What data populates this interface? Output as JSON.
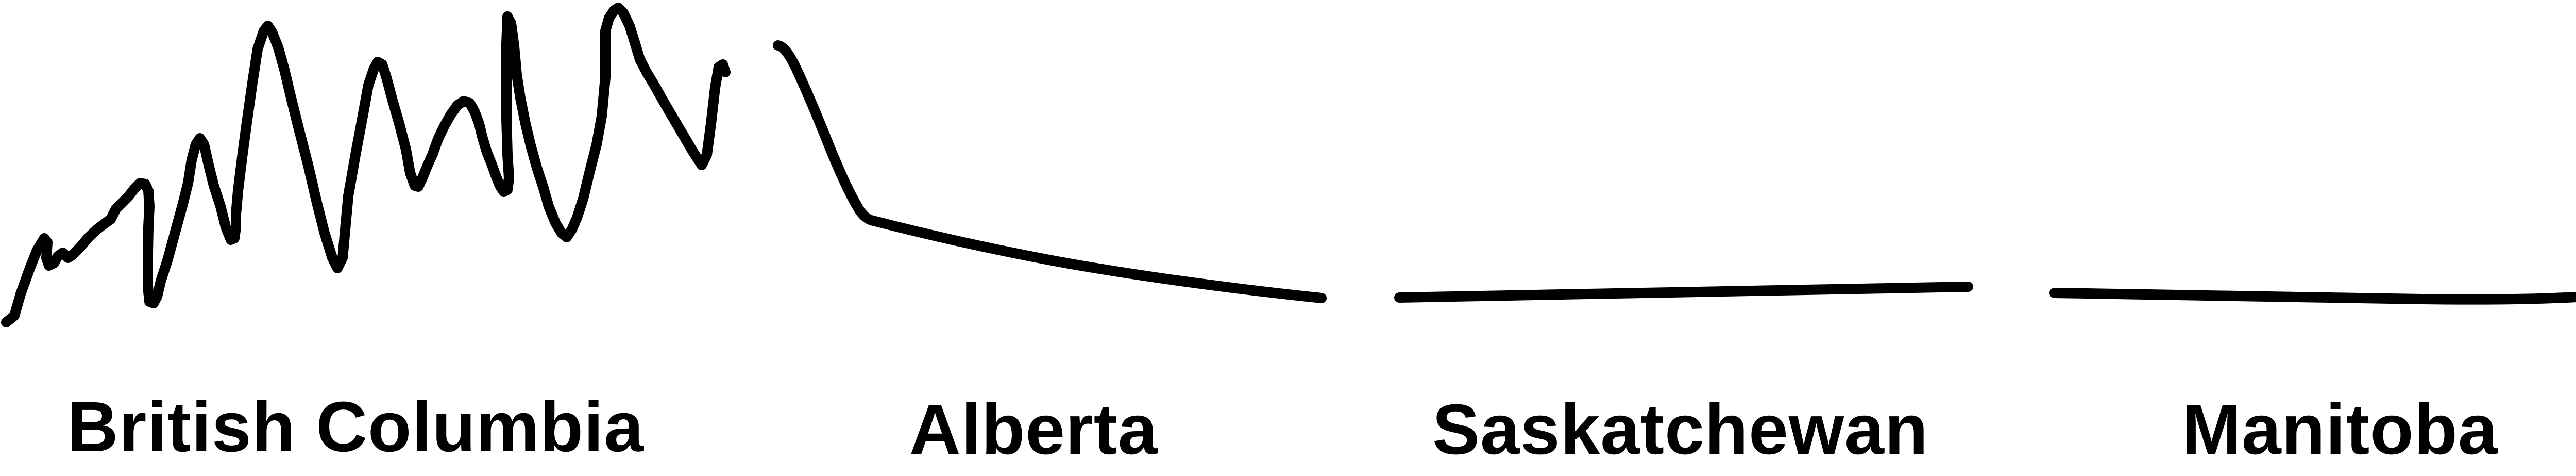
{
  "provinces": [
    {
      "name": "British Columbia",
      "terrain": "mountainous"
    },
    {
      "name": "Alberta",
      "terrain": "foothills-to-plains"
    },
    {
      "name": "Saskatchewan",
      "terrain": "flat"
    },
    {
      "name": "Manitoba",
      "terrain": "flat"
    }
  ],
  "colors": {
    "stroke": "#000000",
    "background": "#ffffff",
    "text": "#000000"
  }
}
